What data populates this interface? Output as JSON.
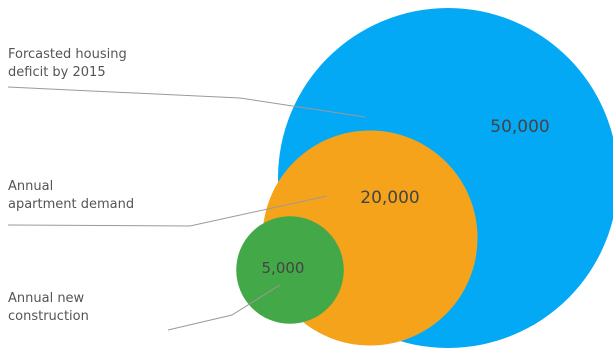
{
  "chart_data": {
    "type": "bubble",
    "series": [
      {
        "label_lines": [
          "Forcasted housing",
          "deficit by 2015"
        ],
        "value": 50000,
        "value_label": "50,000",
        "color": "#03a9f4"
      },
      {
        "label_lines": [
          "Annual",
          "apartment demand"
        ],
        "value": 20000,
        "value_label": "20,000",
        "color": "#f5a31a"
      },
      {
        "label_lines": [
          "Annual new",
          "construction"
        ],
        "value": 5000,
        "value_label": "5,000",
        "color": "#43a847"
      }
    ]
  }
}
